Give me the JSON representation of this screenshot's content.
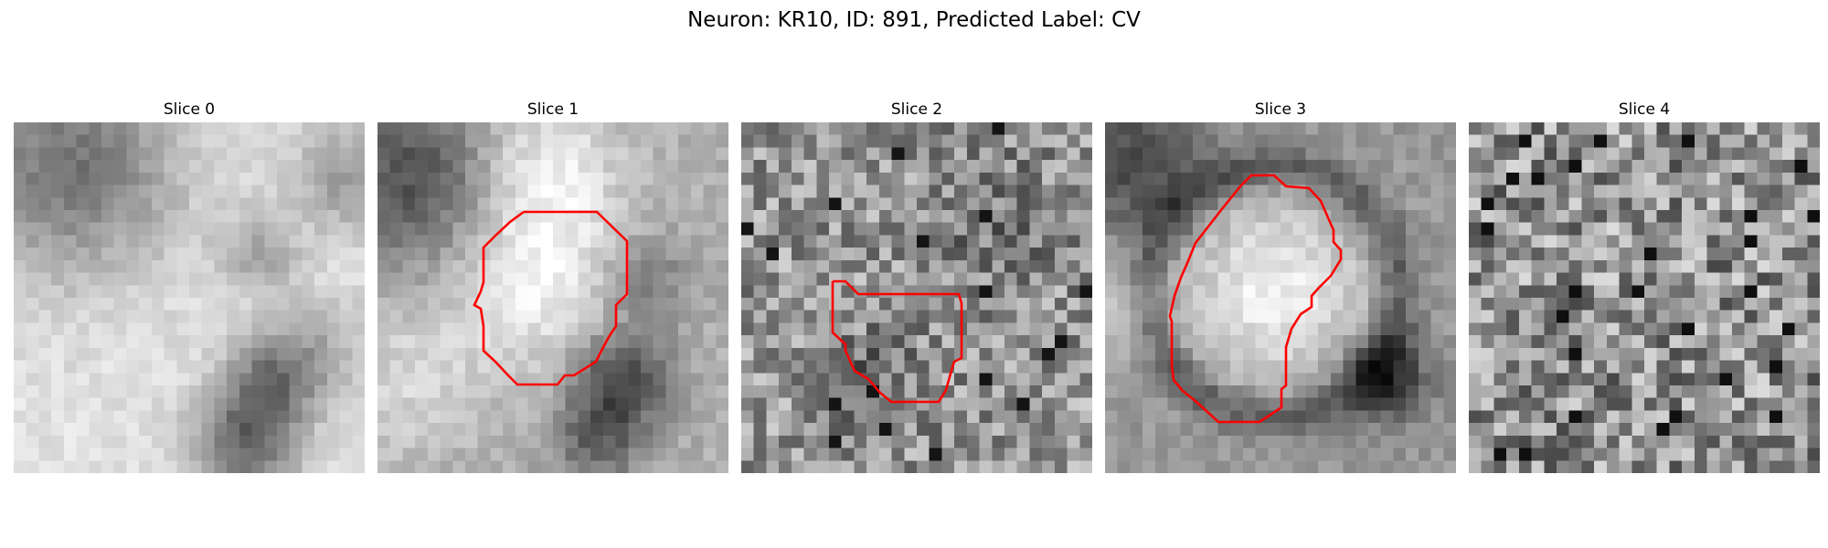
{
  "figure": {
    "title": "Neuron: KR10, ID: 891, Predicted Label: CV",
    "contour_color": "#ff0000",
    "colormap": "grayscale",
    "grid_size": 28
  },
  "slices": [
    {
      "title": "Slice 0",
      "contour": false,
      "texture": "soft-bright-with-dark-upper-left-and-dark-band-lower-right"
    },
    {
      "title": "Slice 1",
      "contour": true,
      "texture": "bright-round-soma-with-dark-surround"
    },
    {
      "title": "Slice 2",
      "contour": true,
      "texture": "noisy-gray-with-faint-structure"
    },
    {
      "title": "Slice 3",
      "contour": true,
      "texture": "large-bright-round-soma-with-dark-ring"
    },
    {
      "title": "Slice 4",
      "contour": false,
      "texture": "high-frequency-noise"
    }
  ]
}
